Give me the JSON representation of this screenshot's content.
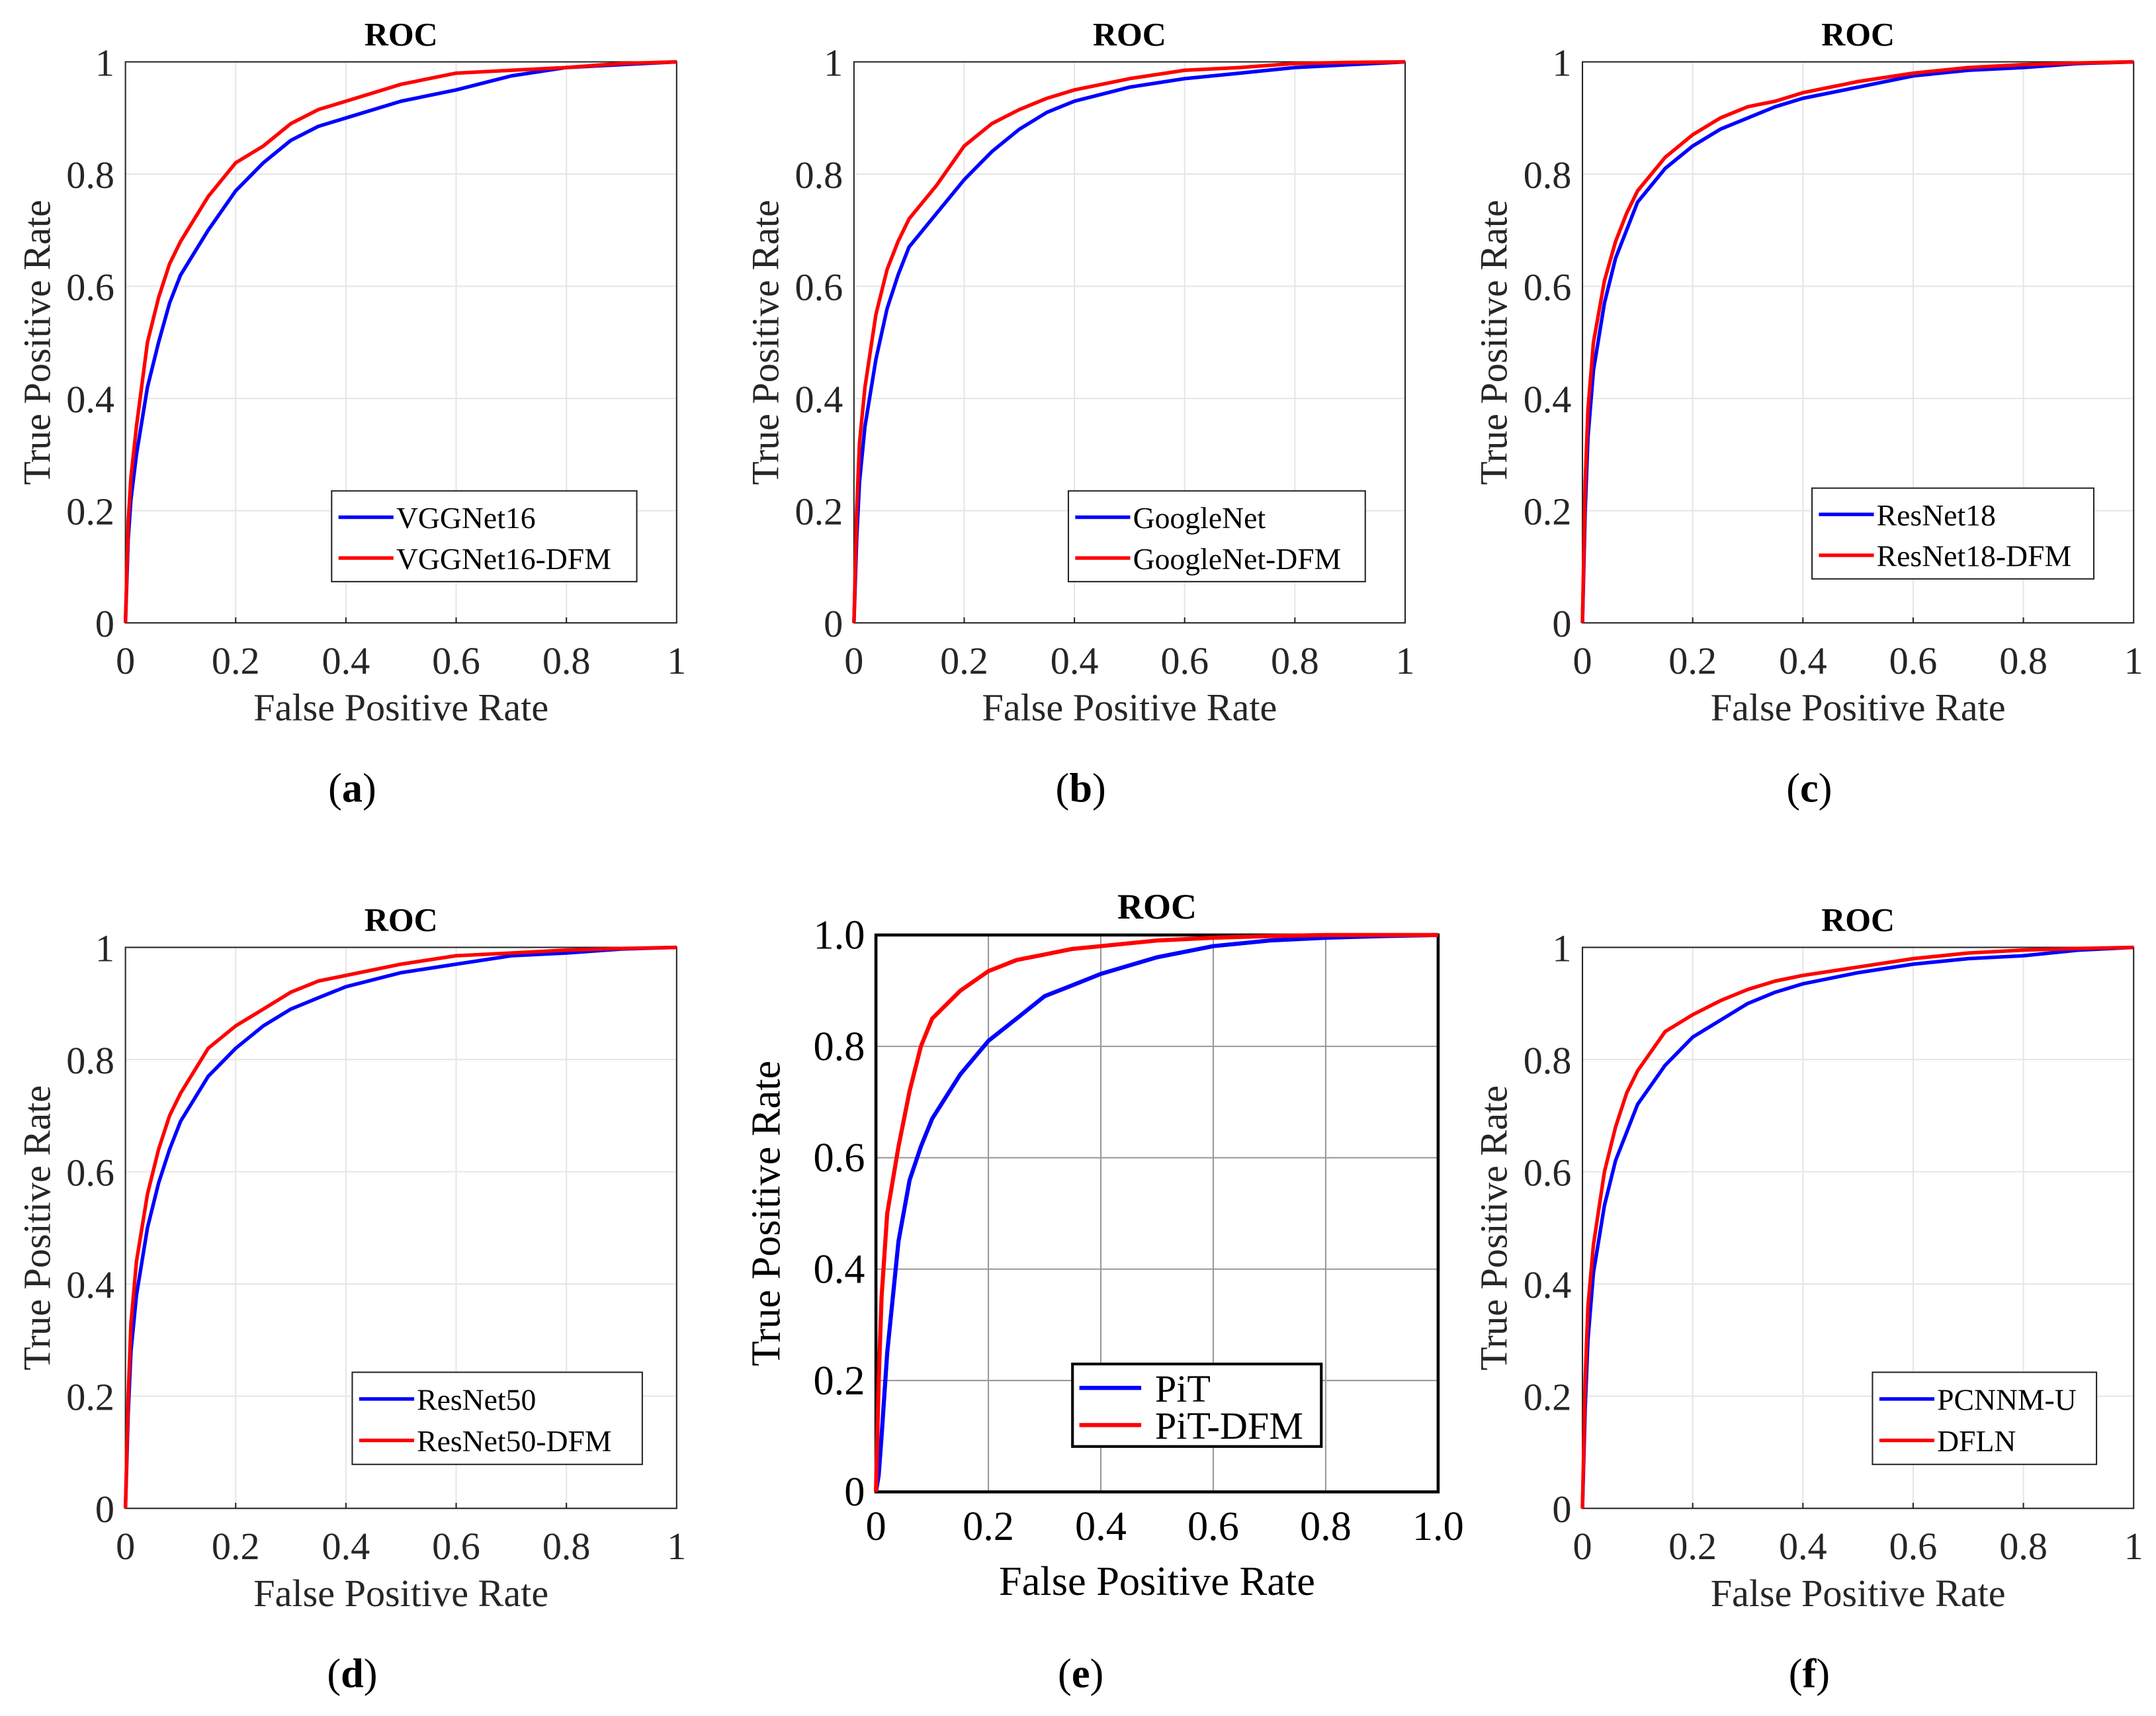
{
  "chart_data": [
    {
      "panel": "a",
      "caption": "(a)",
      "type": "line",
      "title": "ROC",
      "xlabel": "False Positive Rate",
      "ylabel": "True Positive Rate",
      "xlim": [
        0,
        1
      ],
      "ylim": [
        0,
        1
      ],
      "xticks": [
        "0",
        "0.2",
        "0.4",
        "0.6",
        "0.8",
        "1"
      ],
      "yticks": [
        "0",
        "0.2",
        "0.4",
        "0.6",
        "0.8",
        "1"
      ],
      "legend": "bottom-right",
      "series": [
        {
          "name": "VGGNet16",
          "color": "#0000ff",
          "y": [
            0,
            0.15,
            0.22,
            0.3,
            0.42,
            0.5,
            0.57,
            0.62,
            0.7,
            0.77,
            0.82,
            0.86,
            0.885,
            0.9,
            0.93,
            0.95,
            0.975,
            0.99,
            0.995,
            1
          ]
        },
        {
          "name": "VGGNet16-DFM",
          "color": "#ff0000",
          "y": [
            0,
            0.18,
            0.26,
            0.35,
            0.5,
            0.58,
            0.64,
            0.68,
            0.76,
            0.82,
            0.85,
            0.89,
            0.915,
            0.93,
            0.96,
            0.98,
            0.985,
            0.99,
            0.997,
            1
          ]
        }
      ]
    },
    {
      "panel": "b",
      "caption": "(b)",
      "type": "line",
      "title": "ROC",
      "xlabel": "False Positive Rate",
      "ylabel": "True Positive Rate",
      "xlim": [
        0,
        1
      ],
      "ylim": [
        0,
        1
      ],
      "xticks": [
        "0",
        "0.2",
        "0.4",
        "0.6",
        "0.8",
        "1"
      ],
      "yticks": [
        "0",
        "0.2",
        "0.4",
        "0.6",
        "0.8",
        "1"
      ],
      "legend": "bottom-right",
      "series": [
        {
          "name": "GoogleNet",
          "color": "#0000ff",
          "y": [
            0,
            0.15,
            0.25,
            0.35,
            0.47,
            0.56,
            0.62,
            0.67,
            0.73,
            0.79,
            0.84,
            0.88,
            0.91,
            0.93,
            0.955,
            0.97,
            0.98,
            0.99,
            0.995,
            1
          ]
        },
        {
          "name": "GoogleNet-DFM",
          "color": "#ff0000",
          "y": [
            0,
            0.2,
            0.32,
            0.42,
            0.55,
            0.63,
            0.68,
            0.72,
            0.78,
            0.85,
            0.89,
            0.915,
            0.935,
            0.95,
            0.97,
            0.985,
            0.99,
            0.997,
            0.999,
            1
          ]
        }
      ]
    },
    {
      "panel": "c",
      "caption": "(c)",
      "type": "line",
      "title": "ROC",
      "xlabel": "False Positive Rate",
      "ylabel": "True Positive Rate",
      "xlim": [
        0,
        1
      ],
      "ylim": [
        0,
        1
      ],
      "xticks": [
        "0",
        "0.2",
        "0.4",
        "0.6",
        "0.8",
        "1"
      ],
      "yticks": [
        "0",
        "0.2",
        "0.4",
        "0.6",
        "0.8",
        "1"
      ],
      "legend": "bottom-right",
      "series": [
        {
          "name": "ResNet18",
          "color": "#0000ff",
          "y": [
            0,
            0.2,
            0.33,
            0.45,
            0.57,
            0.65,
            0.7,
            0.75,
            0.81,
            0.85,
            0.88,
            0.9,
            0.92,
            0.935,
            0.955,
            0.975,
            0.985,
            0.99,
            0.997,
            1
          ]
        },
        {
          "name": "ResNet18-DFM",
          "color": "#ff0000",
          "y": [
            0,
            0.25,
            0.38,
            0.5,
            0.61,
            0.68,
            0.73,
            0.77,
            0.83,
            0.87,
            0.9,
            0.92,
            0.93,
            0.945,
            0.965,
            0.98,
            0.99,
            0.995,
            0.998,
            1
          ]
        }
      ]
    },
    {
      "panel": "d",
      "caption": "(d)",
      "type": "line",
      "title": "ROC",
      "xlabel": "False Positive Rate",
      "ylabel": "True Positive Rate",
      "xlim": [
        0,
        1
      ],
      "ylim": [
        0,
        1
      ],
      "xticks": [
        "0",
        "0.2",
        "0.4",
        "0.6",
        "0.8",
        "1"
      ],
      "yticks": [
        "0",
        "0.2",
        "0.4",
        "0.6",
        "0.8",
        "1"
      ],
      "legend": "bottom-right",
      "series": [
        {
          "name": "ResNet50",
          "color": "#0000ff",
          "y": [
            0,
            0.17,
            0.28,
            0.38,
            0.5,
            0.58,
            0.64,
            0.69,
            0.77,
            0.82,
            0.86,
            0.89,
            0.91,
            0.93,
            0.955,
            0.97,
            0.985,
            0.99,
            0.997,
            1
          ]
        },
        {
          "name": "ResNet50-DFM",
          "color": "#ff0000",
          "y": [
            0,
            0.2,
            0.33,
            0.44,
            0.56,
            0.64,
            0.7,
            0.74,
            0.82,
            0.86,
            0.89,
            0.92,
            0.94,
            0.95,
            0.97,
            0.985,
            0.99,
            0.995,
            0.998,
            1
          ]
        }
      ]
    },
    {
      "panel": "e",
      "caption": "(e)",
      "type": "line",
      "title": "ROC",
      "xlabel": "False Positive Rate",
      "ylabel": "True Positive Rate",
      "xlim": [
        0,
        1
      ],
      "ylim": [
        0,
        1
      ],
      "xticks": [
        "0",
        "0.2",
        "0.4",
        "0.6",
        "0.8",
        "1.0"
      ],
      "yticks": [
        "0",
        "0.2",
        "0.4",
        "0.6",
        "0.8",
        "1.0"
      ],
      "legend": "bottom-center",
      "series": [
        {
          "name": "PiT",
          "color": "#0000ff",
          "y": [
            0,
            0.03,
            0.1,
            0.25,
            0.45,
            0.56,
            0.62,
            0.67,
            0.75,
            0.81,
            0.85,
            0.89,
            0.91,
            0.93,
            0.96,
            0.98,
            0.99,
            0.995,
            0.998,
            1
          ]
        },
        {
          "name": "PiT-DFM",
          "color": "#ff0000",
          "y": [
            0,
            0.2,
            0.35,
            0.5,
            0.62,
            0.72,
            0.8,
            0.85,
            0.9,
            0.935,
            0.955,
            0.965,
            0.975,
            0.98,
            0.99,
            0.995,
            0.998,
            1,
            1,
            1
          ]
        }
      ]
    },
    {
      "panel": "f",
      "caption": "(f)",
      "type": "line",
      "title": "ROC",
      "xlabel": "False Positive Rate",
      "ylabel": "True Positive Rate",
      "xlim": [
        0,
        1
      ],
      "ylim": [
        0,
        1
      ],
      "xticks": [
        "0",
        "0.2",
        "0.4",
        "0.6",
        "0.8",
        "1"
      ],
      "yticks": [
        "0",
        "0.2",
        "0.4",
        "0.6",
        "0.8",
        "1"
      ],
      "legend": "bottom-right",
      "series": [
        {
          "name": "PCNNM-U",
          "color": "#0000ff",
          "y": [
            0,
            0.18,
            0.3,
            0.42,
            0.54,
            0.62,
            0.67,
            0.72,
            0.79,
            0.84,
            0.87,
            0.9,
            0.92,
            0.935,
            0.955,
            0.97,
            0.98,
            0.985,
            0.995,
            1
          ]
        },
        {
          "name": "DFLN",
          "color": "#ff0000",
          "y": [
            0,
            0.23,
            0.36,
            0.47,
            0.6,
            0.68,
            0.74,
            0.78,
            0.85,
            0.88,
            0.905,
            0.925,
            0.94,
            0.95,
            0.965,
            0.98,
            0.99,
            0.995,
            0.998,
            1
          ]
        }
      ]
    }
  ],
  "x_points": [
    0,
    0.005,
    0.01,
    0.02,
    0.04,
    0.06,
    0.08,
    0.1,
    0.15,
    0.2,
    0.25,
    0.3,
    0.35,
    0.4,
    0.5,
    0.6,
    0.7,
    0.8,
    0.9,
    1
  ]
}
